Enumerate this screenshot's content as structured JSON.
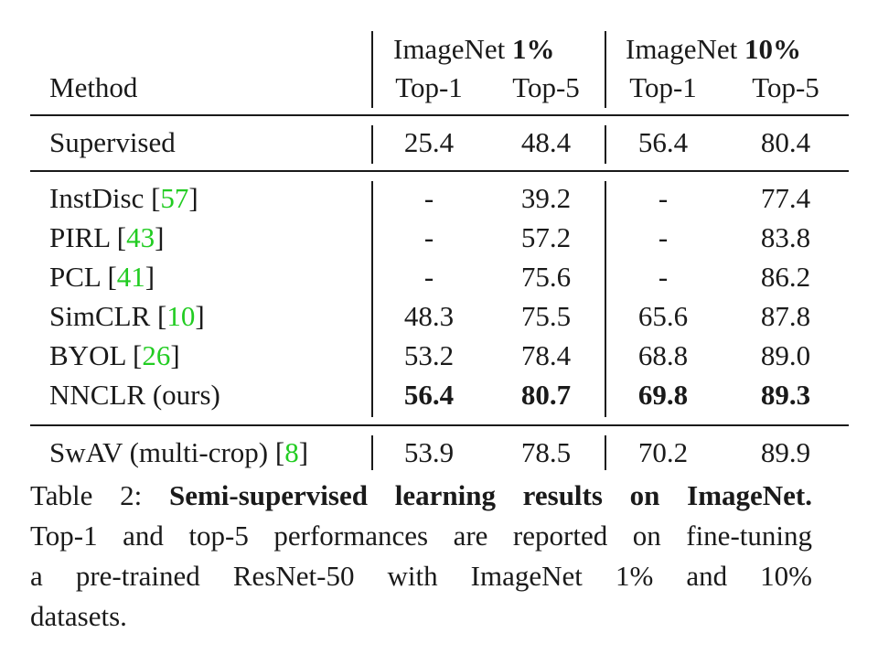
{
  "table": {
    "header": {
      "method": "Method",
      "group1_prefix": "ImageNet ",
      "group1_bold": "1%",
      "group2_prefix": "ImageNet ",
      "group2_bold": "10%",
      "top1": "Top-1",
      "top5": "Top-5"
    },
    "rows": [
      {
        "method": "Supervised",
        "cite": "",
        "close": "",
        "v": [
          "25.4",
          "48.4",
          "56.4",
          "80.4"
        ],
        "bold": false
      },
      {
        "method": "InstDisc [",
        "cite": "57",
        "close": "]",
        "v": [
          "-",
          "39.2",
          "-",
          "77.4"
        ],
        "bold": false
      },
      {
        "method": "PIRL [",
        "cite": "43",
        "close": "]",
        "v": [
          "-",
          "57.2",
          "-",
          "83.8"
        ],
        "bold": false
      },
      {
        "method": "PCL [",
        "cite": "41",
        "close": "]",
        "v": [
          "-",
          "75.6",
          "-",
          "86.2"
        ],
        "bold": false
      },
      {
        "method": "SimCLR [",
        "cite": "10",
        "close": "]",
        "v": [
          "48.3",
          "75.5",
          "65.6",
          "87.8"
        ],
        "bold": false
      },
      {
        "method": "BYOL [",
        "cite": "26",
        "close": "]",
        "v": [
          "53.2",
          "78.4",
          "68.8",
          "89.0"
        ],
        "bold": false
      },
      {
        "method": "NNCLR (ours)",
        "cite": "",
        "close": "",
        "v": [
          "56.4",
          "80.7",
          "69.8",
          "89.3"
        ],
        "bold": true
      },
      {
        "method": "SwAV (multi-crop) [",
        "cite": "8",
        "close": "]",
        "v": [
          "53.9",
          "78.5",
          "70.2",
          "89.9"
        ],
        "bold": false
      }
    ]
  },
  "caption": {
    "label": "Table 2: ",
    "title": "Semi-supervised learning results on ImageNet.",
    "line2": "Top-1 and top-5 performances are reported on fine-tuning",
    "line3": "a pre-trained ResNet-50 with ImageNet 1% and 10%",
    "line4": "datasets."
  }
}
